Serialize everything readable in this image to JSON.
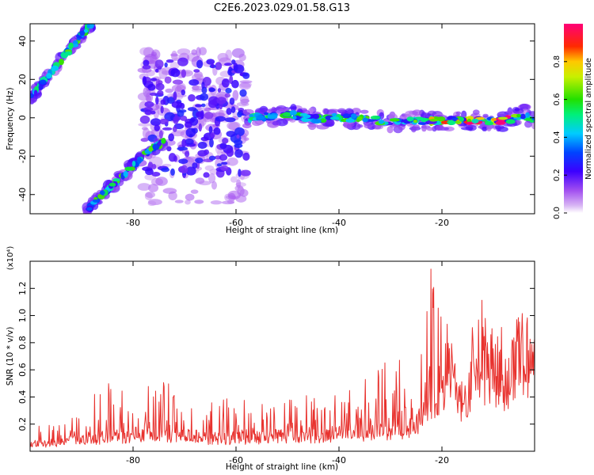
{
  "figure_title": "C2E6.2023.029.01.58.G13",
  "colors": {
    "snr_line": "#e8322e",
    "axes": "#000000",
    "background": "#ffffff"
  },
  "colorbar": {
    "label": "Normalized spectral amplitude",
    "ticks": [
      "0.0",
      "0.2",
      "0.4",
      "0.6",
      "0.8"
    ],
    "tick_values": [
      0.0,
      0.2,
      0.4,
      0.6,
      0.8
    ],
    "range": [
      0,
      1
    ],
    "colormap": "rainbow (white, violet, blue, cyan, green, yellow, red, magenta)"
  },
  "chart_data": [
    {
      "type": "heatmap",
      "title": "",
      "xlabel": "Height of straight line (km)",
      "ylabel": "Frequency (Hz)",
      "xlim": [
        -100,
        -2
      ],
      "ylim": [
        -50,
        49
      ],
      "xticks": [
        -80,
        -60,
        -40,
        -20
      ],
      "yticks": [
        -40,
        -20,
        0,
        20,
        40
      ],
      "x_tick_labels": [
        "-80",
        "-60",
        "-40",
        "-20"
      ],
      "y_tick_labels": [
        "-40",
        "-20",
        "0",
        "20",
        "40"
      ],
      "grid": false,
      "ridge_upper": {
        "x": [
          -100,
          -97,
          -94,
          -91,
          -88
        ],
        "y": [
          10,
          20,
          30,
          40,
          49
        ],
        "amplitude": 0.45
      },
      "ridge_lower": {
        "x": [
          -89,
          -86,
          -82,
          -78,
          -74
        ],
        "y": [
          -48,
          -40,
          -30,
          -20,
          -12
        ],
        "amplitude": 0.45
      },
      "scatter_zone": {
        "x": [
          -78,
          -58
        ],
        "y": [
          -45,
          35
        ],
        "amplitude": 0.1
      },
      "band_center": {
        "x": [
          -58,
          -50,
          -44,
          -38,
          -30,
          -22,
          -14,
          -8,
          -4,
          -2
        ],
        "y": [
          0,
          1.5,
          -0.5,
          0,
          -2,
          -1.5,
          -1.5,
          -1.5,
          1.5,
          -1
        ],
        "amplitude": [
          0.35,
          0.45,
          0.45,
          0.5,
          0.45,
          0.7,
          0.9,
          0.95,
          0.5,
          0.45
        ]
      }
    },
    {
      "type": "line",
      "title": "",
      "xlabel": "Height of straight line (km)",
      "ylabel": "SNR (10 * v/v)",
      "y_multiplier": "(x10⁴)",
      "xlim": [
        -100,
        -2
      ],
      "ylim": [
        0,
        1.4
      ],
      "xticks": [
        -80,
        -60,
        -40,
        -20
      ],
      "yticks": [
        0.2,
        0.4,
        0.6,
        0.8,
        1.0,
        1.2
      ],
      "x_tick_labels": [
        "-80",
        "-60",
        "-40",
        "-20"
      ],
      "y_tick_labels": [
        "0.2",
        "0.4",
        "0.6",
        "0.8",
        "1.0",
        "1.2"
      ],
      "grid": false,
      "envelope": {
        "x": [
          -100,
          -95,
          -90,
          -86,
          -80,
          -75,
          -70,
          -65,
          -60,
          -55,
          -50,
          -45,
          -40,
          -35,
          -30,
          -26,
          -25,
          -24,
          -23,
          -22,
          -21,
          -20,
          -19,
          -18,
          -17,
          -16,
          -15,
          -14,
          -12,
          -10,
          -8,
          -6,
          -4,
          -2
        ],
        "base": [
          0.06,
          0.08,
          0.1,
          0.12,
          0.15,
          0.15,
          0.14,
          0.12,
          0.12,
          0.13,
          0.14,
          0.15,
          0.16,
          0.18,
          0.2,
          0.22,
          0.25,
          0.3,
          0.5,
          0.6,
          0.45,
          0.55,
          0.8,
          0.7,
          0.55,
          0.5,
          0.45,
          0.8,
          0.85,
          0.8,
          0.6,
          0.85,
          0.88,
          0.85
        ],
        "peak": [
          0.17,
          0.22,
          0.3,
          0.53,
          0.45,
          0.6,
          0.4,
          0.45,
          0.38,
          0.4,
          0.42,
          0.45,
          0.45,
          0.55,
          0.7,
          0.65,
          0.55,
          0.9,
          1.35,
          1.38,
          1.2,
          1.0,
          1.1,
          0.9,
          0.75,
          0.6,
          0.55,
          1.1,
          1.12,
          1.1,
          0.9,
          1.03,
          1.1,
          0.95
        ]
      }
    }
  ]
}
